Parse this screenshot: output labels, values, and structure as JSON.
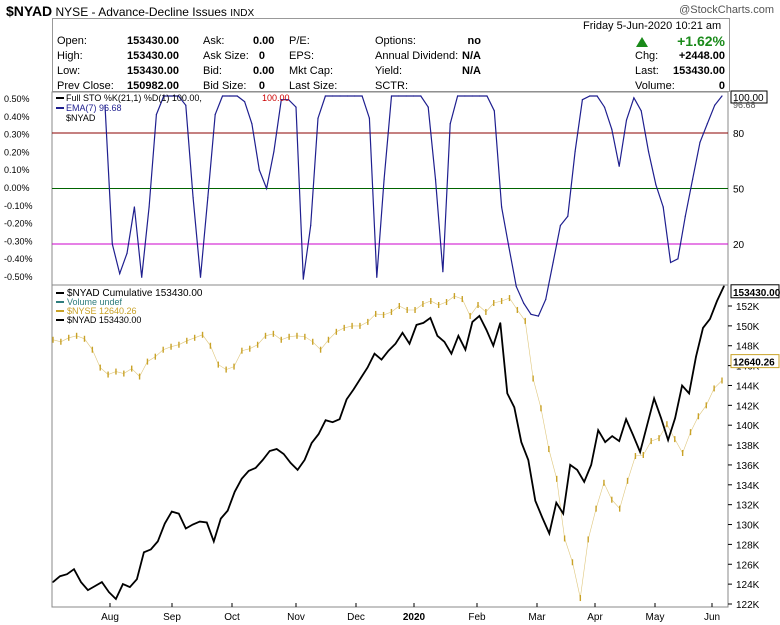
{
  "header": {
    "symbol": "$NYAD",
    "description": "NYSE - Advance-Decline Issues",
    "exchange": "INDX",
    "brand": "@StockCharts.com"
  },
  "quote": {
    "datetime": "Friday  5-Jun-2020  10:21 am",
    "change_pct": "+1.62%",
    "up_color": "#1a8a1a",
    "rows": [
      {
        "label": "Open:",
        "value": "153430.00",
        "label2": "Ask:",
        "value2": "0.00",
        "label3": "P/E:",
        "value3": "",
        "label4": "Options:",
        "value4": "no",
        "label5": "",
        "value5": ""
      },
      {
        "label": "High:",
        "value": "153430.00",
        "label2": "Ask Size:",
        "value2": "0",
        "label3": "EPS:",
        "value3": "",
        "label4": "Annual Dividend:",
        "value4": "N/A",
        "label5": "Chg:",
        "value5": "+2448.00"
      },
      {
        "label": "Low:",
        "value": "153430.00",
        "label2": "Bid:",
        "value2": "0.00",
        "label3": "Mkt Cap:",
        "value3": "",
        "label4": "Yield:",
        "value4": "N/A",
        "label5": "Last:",
        "value5": "153430.00"
      },
      {
        "label": "Prev Close:",
        "value": "150982.00",
        "label2": "Bid Size:",
        "value2": "0",
        "label3": "Last Size:",
        "value3": "",
        "label4": "SCTR:",
        "value4": "",
        "label5": "Volume:",
        "value5": "0"
      }
    ]
  },
  "chart_data": [
    {
      "type": "line",
      "legend": [
        {
          "text": "Full STO %K(21,1) %D(1) 100.00,",
          "value": "100.00",
          "color": "#000000",
          "value_color": "#cc0000"
        },
        {
          "text": "EMA(7) 96.68",
          "color": "#1f1f8f"
        },
        {
          "text": "$NYAD",
          "color": "#000000"
        }
      ],
      "left_ticks": [
        "0.50%",
        "0.40%",
        "0.30%",
        "0.20%",
        "0.10%",
        "0.00%",
        "-0.10%",
        "-0.20%",
        "-0.30%",
        "-0.40%",
        "-0.50%"
      ],
      "right_ticks": [
        "80",
        "50",
        "20"
      ],
      "right_labels": [
        "100.00",
        "96.68"
      ],
      "levels": [
        {
          "value": 80,
          "color": "#8b0000"
        },
        {
          "value": 50,
          "color": "#006400"
        },
        {
          "value": 20,
          "color": "#cc00cc"
        }
      ],
      "ylim": [
        -5,
        100
      ],
      "series": [
        {
          "name": "Full STO %K(21,1)",
          "color": "#1f1f8f",
          "values": [
            95,
            20,
            4,
            15,
            40,
            2,
            40,
            90,
            100,
            100,
            100,
            95,
            45,
            2,
            45,
            90,
            100,
            100,
            100,
            97,
            85,
            60,
            50,
            70,
            98,
            98,
            94,
            1,
            30,
            88,
            100,
            100,
            100,
            100,
            100,
            100,
            88,
            2,
            55,
            100,
            100,
            100,
            100,
            100,
            94,
            55,
            5,
            85,
            100,
            100,
            100,
            100,
            100,
            92,
            40,
            18,
            -3,
            -12,
            -18,
            -19,
            -10,
            10,
            30,
            35,
            70,
            98,
            100,
            100,
            94,
            82,
            62,
            87,
            99,
            92,
            70,
            52,
            40,
            10,
            12,
            35,
            55,
            75,
            85,
            95,
            100
          ]
        }
      ]
    },
    {
      "type": "line",
      "legend": [
        {
          "text": "$NYAD Cumulative 153430.00",
          "color": "#000000"
        },
        {
          "text": "Volume undef",
          "color": "#2e7d7d"
        },
        {
          "text": "$NYSE 12640.26",
          "color": "#c9a227"
        },
        {
          "text": "$NYAD 153430.00",
          "color": "#000000"
        }
      ],
      "right_ticks": [
        "152K",
        "150K",
        "148K",
        "146K",
        "144K",
        "142K",
        "140K",
        "138K",
        "136K",
        "134K",
        "132K",
        "130K",
        "128K",
        "126K",
        "124K",
        "122K"
      ],
      "right_labels": [
        "153430.00",
        "12640.26"
      ],
      "x_ticks": [
        "Aug",
        "Sep",
        "Oct",
        "Nov",
        "Dec",
        "2020",
        "Feb",
        "Mar",
        "Apr",
        "May",
        "Jun"
      ],
      "ylim": [
        121.5,
        154.3
      ],
      "series": [
        {
          "name": "$NYAD Cumulative",
          "color": "#000000",
          "values": [
            124.2,
            124.8,
            125.0,
            125.5,
            124.2,
            123.4,
            123.8,
            124.2,
            123.2,
            122.5,
            124.0,
            123.7,
            124.5,
            127.2,
            127.5,
            128.3,
            130.1,
            131.3,
            131.1,
            129.6,
            130.0,
            130.3,
            130.2,
            128.3,
            130.6,
            131.4,
            133.3,
            134.6,
            135.4,
            135.7,
            136.5,
            137.4,
            137.6,
            137.1,
            136.2,
            135.5,
            136.5,
            138.2,
            139.1,
            140.5,
            140.3,
            140.6,
            142.6,
            143.6,
            144.7,
            145.8,
            147.2,
            146.6,
            147.5,
            148.2,
            149.3,
            148.2,
            150.1,
            150.3,
            150.8,
            149.0,
            148.4,
            147.2,
            149.0,
            147.6,
            150.4,
            151.0,
            149.6,
            148.0,
            150.3,
            143.2,
            141.8,
            138.3,
            136.5,
            132.4,
            130.7,
            129.1,
            132.2,
            131.1,
            136.0,
            135.5,
            134.3,
            136.0,
            139.5,
            138.3,
            138.9,
            138.4,
            140.6,
            139.0,
            137.3,
            140.0,
            142.7,
            140.7,
            138.5,
            140.7,
            144.0,
            143.2,
            146.9,
            149.8,
            150.7,
            152.5,
            154.0
          ]
        },
        {
          "name": "$NYSE",
          "color": "#c9a227",
          "values": [
            148.6,
            148.4,
            148.8,
            149.0,
            148.7,
            147.6,
            145.8,
            145.1,
            145.4,
            145.2,
            145.7,
            144.9,
            146.4,
            146.9,
            147.6,
            147.9,
            148.1,
            148.5,
            148.8,
            149.1,
            148.0,
            146.1,
            145.6,
            145.9,
            147.5,
            147.7,
            148.1,
            149.0,
            149.2,
            148.6,
            148.9,
            149.0,
            148.9,
            148.4,
            147.6,
            148.6,
            149.4,
            149.8,
            150.0,
            150.0,
            150.4,
            151.2,
            151.1,
            151.4,
            152.0,
            151.6,
            151.6,
            152.2,
            152.5,
            152.1,
            152.4,
            153.0,
            152.7,
            151.0,
            152.1,
            151.4,
            152.3,
            152.5,
            152.8,
            151.6,
            150.5,
            144.7,
            141.7,
            137.6,
            134.6,
            128.6,
            126.2,
            122.6,
            128.5,
            131.6,
            134.2,
            132.5,
            131.6,
            134.4,
            136.9,
            137.0,
            138.4,
            138.7,
            140.1,
            138.6,
            137.2,
            139.3,
            140.9,
            142.0,
            143.7,
            144.5
          ]
        }
      ]
    }
  ]
}
